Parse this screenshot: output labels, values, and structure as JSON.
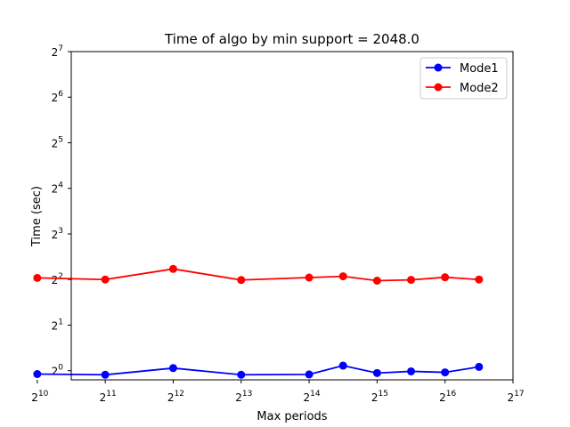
{
  "chart_data": {
    "type": "line",
    "title": "Time of algo by min support = 2048.0",
    "xlabel": "Max periods",
    "ylabel": "Time (sec)",
    "x_scale": "log2",
    "y_scale": "log2",
    "xlim": [
      1448,
      131072
    ],
    "ylim": [
      0.87,
      128
    ],
    "x_ticks": [
      {
        "base": "2",
        "exp": "10",
        "value": 1024
      },
      {
        "base": "2",
        "exp": "11",
        "value": 2048
      },
      {
        "base": "2",
        "exp": "12",
        "value": 4096
      },
      {
        "base": "2",
        "exp": "13",
        "value": 8192
      },
      {
        "base": "2",
        "exp": "14",
        "value": 16384
      },
      {
        "base": "2",
        "exp": "15",
        "value": 32768
      },
      {
        "base": "2",
        "exp": "16",
        "value": 65536
      },
      {
        "base": "2",
        "exp": "17",
        "value": 131072
      }
    ],
    "y_ticks": [
      {
        "base": "2",
        "exp": "0",
        "value": 1
      },
      {
        "base": "2",
        "exp": "1",
        "value": 2
      },
      {
        "base": "2",
        "exp": "2",
        "value": 4
      },
      {
        "base": "2",
        "exp": "3",
        "value": 8
      },
      {
        "base": "2",
        "exp": "4",
        "value": 16
      },
      {
        "base": "2",
        "exp": "5",
        "value": 32
      },
      {
        "base": "2",
        "exp": "6",
        "value": 64
      },
      {
        "base": "2",
        "exp": "7",
        "value": 128
      }
    ],
    "series": [
      {
        "name": "Mode1",
        "color": "#0000ff",
        "x": [
          1024,
          2048,
          4096,
          8192,
          16384,
          23170,
          32768,
          46341,
          65536,
          92682
        ],
        "y": [
          0.95,
          0.94,
          1.04,
          0.94,
          0.945,
          1.08,
          0.965,
          0.99,
          0.975,
          1.06
        ]
      },
      {
        "name": "Mode2",
        "color": "#ff0000",
        "x": [
          1024,
          2048,
          4096,
          8192,
          16384,
          23170,
          32768,
          46341,
          65536,
          92682
        ],
        "y": [
          4.1,
          4.0,
          4.7,
          3.97,
          4.12,
          4.2,
          3.93,
          3.98,
          4.14,
          4.0
        ]
      }
    ],
    "legend_position": "upper right",
    "grid": false
  }
}
